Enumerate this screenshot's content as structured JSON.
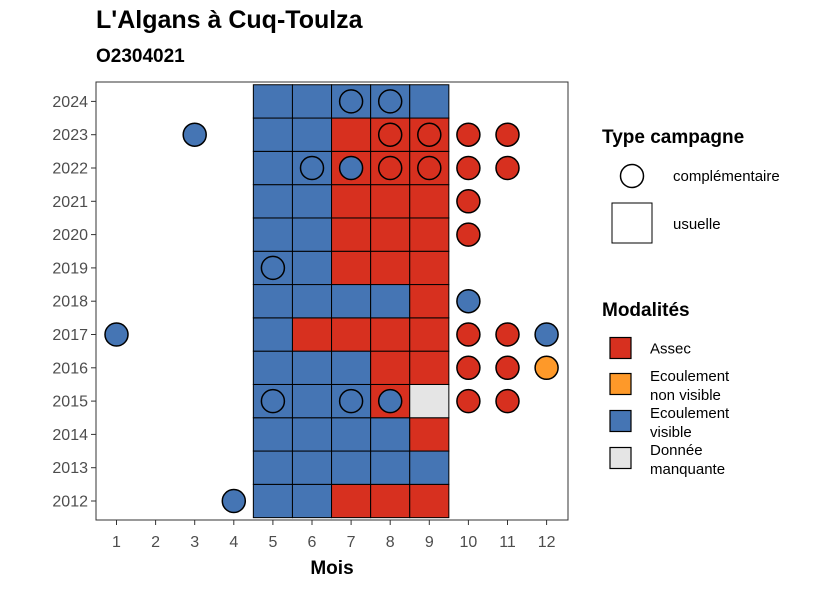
{
  "chart_data": {
    "type": "heatmap",
    "title": "L'Algans à Cuq-Toulza",
    "subtitle": "O2304021",
    "xlabel": "Mois",
    "ylabel": "",
    "x_ticks": [
      1,
      2,
      3,
      4,
      5,
      6,
      7,
      8,
      9,
      10,
      11,
      12
    ],
    "y_ticks": [
      2012,
      2013,
      2014,
      2015,
      2016,
      2017,
      2018,
      2019,
      2020,
      2021,
      2022,
      2023,
      2024
    ],
    "colors": {
      "Assec": "#d7301f",
      "Ecoulement non visible": "#fe9929",
      "Ecoulement visible": "#4575b4",
      "Donnée manquante": "#e5e5e5"
    },
    "usuelle": [
      {
        "year": 2012,
        "month": 5,
        "status": "Ecoulement visible"
      },
      {
        "year": 2012,
        "month": 6,
        "status": "Ecoulement visible"
      },
      {
        "year": 2012,
        "month": 7,
        "status": "Assec"
      },
      {
        "year": 2012,
        "month": 8,
        "status": "Assec"
      },
      {
        "year": 2012,
        "month": 9,
        "status": "Assec"
      },
      {
        "year": 2013,
        "month": 5,
        "status": "Ecoulement visible"
      },
      {
        "year": 2013,
        "month": 6,
        "status": "Ecoulement visible"
      },
      {
        "year": 2013,
        "month": 7,
        "status": "Ecoulement visible"
      },
      {
        "year": 2013,
        "month": 8,
        "status": "Ecoulement visible"
      },
      {
        "year": 2013,
        "month": 9,
        "status": "Ecoulement visible"
      },
      {
        "year": 2014,
        "month": 5,
        "status": "Ecoulement visible"
      },
      {
        "year": 2014,
        "month": 6,
        "status": "Ecoulement visible"
      },
      {
        "year": 2014,
        "month": 7,
        "status": "Ecoulement visible"
      },
      {
        "year": 2014,
        "month": 8,
        "status": "Ecoulement visible"
      },
      {
        "year": 2014,
        "month": 9,
        "status": "Assec"
      },
      {
        "year": 2015,
        "month": 5,
        "status": "Ecoulement visible"
      },
      {
        "year": 2015,
        "month": 6,
        "status": "Ecoulement visible"
      },
      {
        "year": 2015,
        "month": 7,
        "status": "Ecoulement visible"
      },
      {
        "year": 2015,
        "month": 8,
        "status": "Assec"
      },
      {
        "year": 2015,
        "month": 9,
        "status": "Donnée manquante"
      },
      {
        "year": 2016,
        "month": 5,
        "status": "Ecoulement visible"
      },
      {
        "year": 2016,
        "month": 6,
        "status": "Ecoulement visible"
      },
      {
        "year": 2016,
        "month": 7,
        "status": "Ecoulement visible"
      },
      {
        "year": 2016,
        "month": 8,
        "status": "Assec"
      },
      {
        "year": 2016,
        "month": 9,
        "status": "Assec"
      },
      {
        "year": 2017,
        "month": 5,
        "status": "Ecoulement visible"
      },
      {
        "year": 2017,
        "month": 6,
        "status": "Assec"
      },
      {
        "year": 2017,
        "month": 7,
        "status": "Assec"
      },
      {
        "year": 2017,
        "month": 8,
        "status": "Assec"
      },
      {
        "year": 2017,
        "month": 9,
        "status": "Assec"
      },
      {
        "year": 2018,
        "month": 5,
        "status": "Ecoulement visible"
      },
      {
        "year": 2018,
        "month": 6,
        "status": "Ecoulement visible"
      },
      {
        "year": 2018,
        "month": 7,
        "status": "Ecoulement visible"
      },
      {
        "year": 2018,
        "month": 8,
        "status": "Ecoulement visible"
      },
      {
        "year": 2018,
        "month": 9,
        "status": "Assec"
      },
      {
        "year": 2019,
        "month": 5,
        "status": "Ecoulement visible"
      },
      {
        "year": 2019,
        "month": 6,
        "status": "Ecoulement visible"
      },
      {
        "year": 2019,
        "month": 7,
        "status": "Assec"
      },
      {
        "year": 2019,
        "month": 8,
        "status": "Assec"
      },
      {
        "year": 2019,
        "month": 9,
        "status": "Assec"
      },
      {
        "year": 2020,
        "month": 5,
        "status": "Ecoulement visible"
      },
      {
        "year": 2020,
        "month": 6,
        "status": "Ecoulement visible"
      },
      {
        "year": 2020,
        "month": 7,
        "status": "Assec"
      },
      {
        "year": 2020,
        "month": 8,
        "status": "Assec"
      },
      {
        "year": 2020,
        "month": 9,
        "status": "Assec"
      },
      {
        "year": 2021,
        "month": 5,
        "status": "Ecoulement visible"
      },
      {
        "year": 2021,
        "month": 6,
        "status": "Ecoulement visible"
      },
      {
        "year": 2021,
        "month": 7,
        "status": "Assec"
      },
      {
        "year": 2021,
        "month": 8,
        "status": "Assec"
      },
      {
        "year": 2021,
        "month": 9,
        "status": "Assec"
      },
      {
        "year": 2022,
        "month": 5,
        "status": "Ecoulement visible"
      },
      {
        "year": 2022,
        "month": 6,
        "status": "Ecoulement visible"
      },
      {
        "year": 2022,
        "month": 7,
        "status": "Assec"
      },
      {
        "year": 2022,
        "month": 8,
        "status": "Assec"
      },
      {
        "year": 2022,
        "month": 9,
        "status": "Assec"
      },
      {
        "year": 2023,
        "month": 5,
        "status": "Ecoulement visible"
      },
      {
        "year": 2023,
        "month": 6,
        "status": "Ecoulement visible"
      },
      {
        "year": 2023,
        "month": 7,
        "status": "Assec"
      },
      {
        "year": 2023,
        "month": 8,
        "status": "Assec"
      },
      {
        "year": 2023,
        "month": 9,
        "status": "Assec"
      },
      {
        "year": 2024,
        "month": 5,
        "status": "Ecoulement visible"
      },
      {
        "year": 2024,
        "month": 6,
        "status": "Ecoulement visible"
      },
      {
        "year": 2024,
        "month": 7,
        "status": "Ecoulement visible"
      },
      {
        "year": 2024,
        "month": 8,
        "status": "Ecoulement visible"
      },
      {
        "year": 2024,
        "month": 9,
        "status": "Ecoulement visible"
      }
    ],
    "complementaire": [
      {
        "year": 2024,
        "month": 7,
        "status": "Ecoulement visible"
      },
      {
        "year": 2024,
        "month": 8,
        "status": "Ecoulement visible"
      },
      {
        "year": 2023,
        "month": 3,
        "status": "Ecoulement visible"
      },
      {
        "year": 2023,
        "month": 8,
        "status": "Assec"
      },
      {
        "year": 2023,
        "month": 9,
        "status": "Assec"
      },
      {
        "year": 2023,
        "month": 10,
        "status": "Assec"
      },
      {
        "year": 2023,
        "month": 11,
        "status": "Assec"
      },
      {
        "year": 2022,
        "month": 6,
        "status": "Ecoulement visible"
      },
      {
        "year": 2022,
        "month": 7,
        "status": "Ecoulement visible"
      },
      {
        "year": 2022,
        "month": 8,
        "status": "Assec"
      },
      {
        "year": 2022,
        "month": 9,
        "status": "Assec"
      },
      {
        "year": 2022,
        "month": 10,
        "status": "Assec"
      },
      {
        "year": 2022,
        "month": 11,
        "status": "Assec"
      },
      {
        "year": 2021,
        "month": 10,
        "status": "Assec"
      },
      {
        "year": 2020,
        "month": 10,
        "status": "Assec"
      },
      {
        "year": 2019,
        "month": 5,
        "status": "Ecoulement visible"
      },
      {
        "year": 2018,
        "month": 10,
        "status": "Ecoulement visible"
      },
      {
        "year": 2017,
        "month": 1,
        "status": "Ecoulement visible"
      },
      {
        "year": 2017,
        "month": 10,
        "status": "Assec"
      },
      {
        "year": 2017,
        "month": 11,
        "status": "Assec"
      },
      {
        "year": 2017,
        "month": 12,
        "status": "Ecoulement visible"
      },
      {
        "year": 2016,
        "month": 10,
        "status": "Assec"
      },
      {
        "year": 2016,
        "month": 11,
        "status": "Assec"
      },
      {
        "year": 2016,
        "month": 12,
        "status": "Ecoulement non visible"
      },
      {
        "year": 2015,
        "month": 5,
        "status": "Ecoulement visible"
      },
      {
        "year": 2015,
        "month": 7,
        "status": "Ecoulement visible"
      },
      {
        "year": 2015,
        "month": 8,
        "status": "Ecoulement visible"
      },
      {
        "year": 2015,
        "month": 10,
        "status": "Assec"
      },
      {
        "year": 2015,
        "month": 11,
        "status": "Assec"
      },
      {
        "year": 2012,
        "month": 4,
        "status": "Ecoulement visible"
      }
    ],
    "legend_type": {
      "title": "Type campagne",
      "items": [
        "complémentaire",
        "usuelle"
      ]
    },
    "legend_modalites": {
      "title": "Modalités",
      "items": [
        {
          "label_lines": [
            "Assec"
          ],
          "status": "Assec"
        },
        {
          "label_lines": [
            "Ecoulement",
            "non visible"
          ],
          "status": "Ecoulement non visible"
        },
        {
          "label_lines": [
            "Ecoulement",
            "visible"
          ],
          "status": "Ecoulement visible"
        },
        {
          "label_lines": [
            "Donnée",
            "manquante"
          ],
          "status": "Donnée manquante"
        }
      ]
    }
  }
}
